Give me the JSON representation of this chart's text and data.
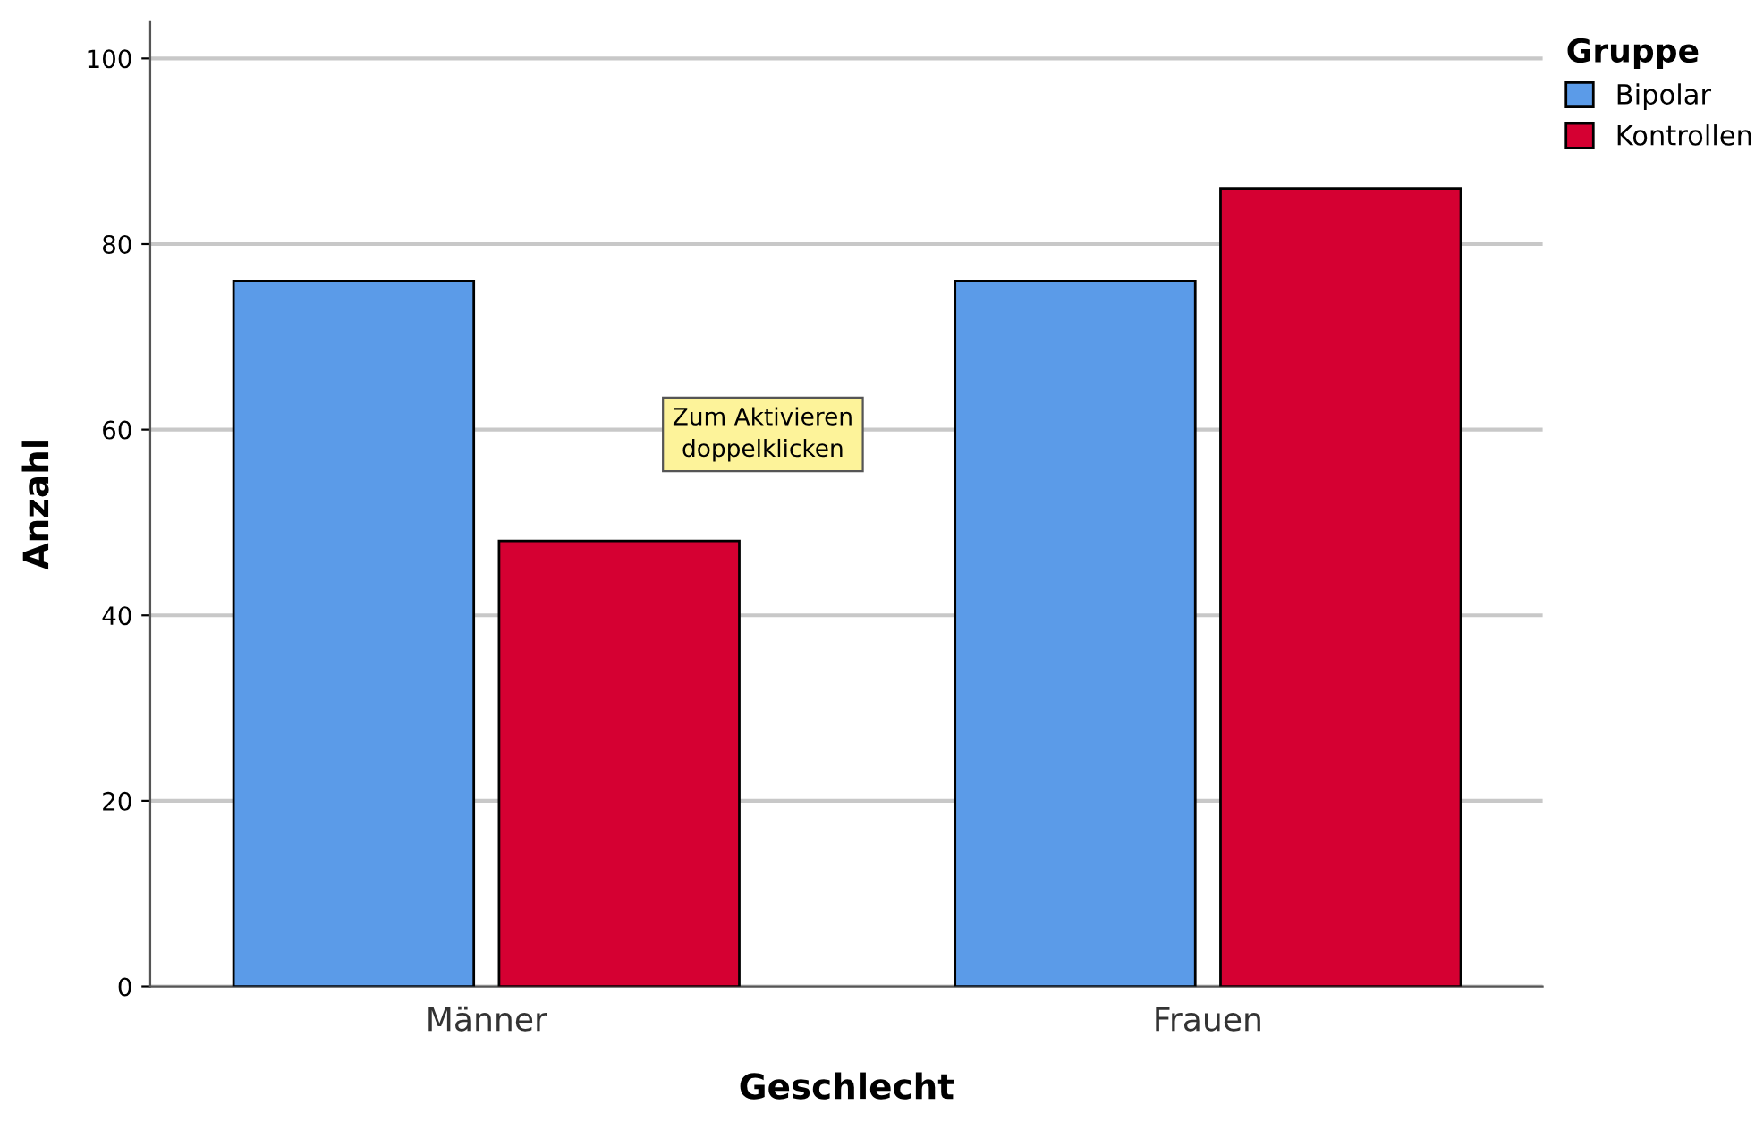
{
  "chart_data": {
    "type": "bar",
    "xlabel": "Geschlecht",
    "ylabel": "Anzahl",
    "legend_title": "Gruppe",
    "categories": [
      "Männer",
      "Frauen"
    ],
    "series": [
      {
        "name": "Bipolar",
        "color": "#5b9be8",
        "values": [
          76,
          76
        ]
      },
      {
        "name": "Kontrollen",
        "color": "#d50032",
        "values": [
          48,
          86
        ]
      }
    ],
    "ylim": [
      0,
      104
    ],
    "yticks": [
      0,
      20,
      40,
      60,
      80,
      100
    ],
    "grid": "y",
    "legend": "top right",
    "annotations": [
      "Zum Aktivieren\ndoppelklicken"
    ]
  }
}
